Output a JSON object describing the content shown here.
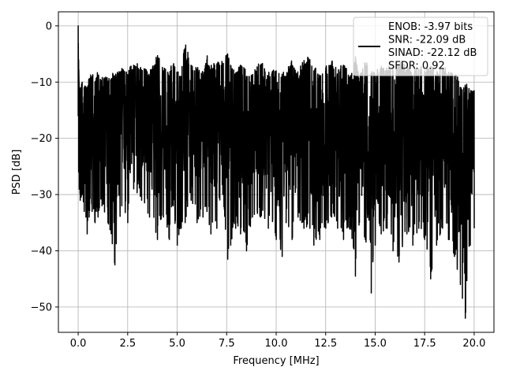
{
  "chart_data": {
    "type": "line",
    "xlabel": "Frequency [MHz]",
    "ylabel": "PSD [dB]",
    "xlim": [
      -1.0,
      21.0
    ],
    "ylim": [
      -54.5,
      2.5
    ],
    "xticks": [
      0.0,
      2.5,
      5.0,
      7.5,
      10.0,
      12.5,
      15.0,
      17.5,
      20.0
    ],
    "xtick_labels": [
      "0.0",
      "2.5",
      "5.0",
      "7.5",
      "10.0",
      "12.5",
      "15.0",
      "17.5",
      "20.0"
    ],
    "yticks": [
      0,
      -10,
      -20,
      -30,
      -40,
      -50
    ],
    "ytick_labels": [
      "0",
      "−10",
      "−20",
      "−30",
      "−40",
      "−50"
    ],
    "grid": true,
    "legend_position": "top-right",
    "series_color": "#000000",
    "legend": {
      "lines": [
        "ENOB: -3.97 bits",
        "SNR: -22.09 dB",
        "SINAD: -22.12 dB",
        "SFDR: 0.92"
      ]
    },
    "series": [
      {
        "x": [
          0.0,
          0.02,
          0.05,
          0.1,
          0.2,
          0.3,
          0.45,
          0.55,
          0.7,
          0.85,
          1.0,
          1.2,
          1.5,
          1.85,
          2.2,
          2.5,
          2.8,
          3.2,
          3.6,
          4.0,
          4.3,
          4.6,
          4.8,
          5.0,
          5.2,
          5.4,
          5.7,
          6.0,
          6.3,
          6.5,
          6.7,
          7.0,
          7.3,
          7.55,
          7.7,
          7.95,
          8.2,
          8.5,
          8.8,
          9.2,
          9.6,
          10.0,
          10.3,
          10.5,
          10.8,
          11.1,
          11.4,
          11.7,
          11.9,
          12.2,
          12.5,
          12.8,
          13.1,
          13.4,
          13.7,
          14.0,
          14.2,
          14.5,
          14.8,
          15.0,
          15.3,
          15.6,
          15.9,
          16.2,
          16.6,
          16.9,
          17.2,
          17.5,
          17.8,
          18.1,
          18.4,
          18.7,
          19.0,
          19.3,
          19.55,
          19.8,
          20.0
        ],
        "peaks": [
          0,
          -6,
          -11,
          -12,
          -10,
          -11,
          -12,
          -10,
          -9,
          -10,
          -9,
          -10,
          -10,
          -9,
          -8,
          -9,
          -7,
          -8,
          -9,
          -6,
          -8,
          -9,
          -7,
          -9,
          -9,
          -4,
          -7,
          -8,
          -9,
          -6,
          -8,
          -7,
          -7,
          -5,
          -7,
          -9,
          -7,
          -9,
          -9,
          -7,
          -9,
          -8,
          -9,
          -9,
          -7,
          -9,
          -7,
          -6,
          -8,
          -9,
          -8,
          -7,
          -9,
          -7,
          -10,
          -6,
          -10,
          -7,
          -9,
          -9,
          -8,
          -8,
          -8,
          -7,
          -8,
          -9,
          -8,
          -8,
          -8,
          -9,
          -8,
          -9,
          -9,
          -11,
          -11,
          -12,
          -12
        ],
        "troughs": [
          -16,
          -26,
          -29,
          -31,
          -30,
          -33,
          -37,
          -34,
          -33,
          -35,
          -34,
          -32,
          -35,
          -42.5,
          -32,
          -35,
          -29,
          -31,
          -34,
          -38,
          -34,
          -38,
          -32,
          -39,
          -36,
          -35,
          -31,
          -35,
          -34,
          -33,
          -37,
          -36,
          -30,
          -41.5,
          -39,
          -36,
          -37,
          -40,
          -34,
          -34,
          -36,
          -38,
          -41,
          -35,
          -38,
          -34,
          -36,
          -36,
          -39,
          -38,
          -36,
          -34,
          -36,
          -38,
          -36,
          -44.5,
          -35,
          -38,
          -47.5,
          -39,
          -37,
          -36,
          -40,
          -42,
          -37,
          -39,
          -36,
          -38,
          -45,
          -39,
          -36,
          -38,
          -41,
          -46,
          -52,
          -39,
          -36
        ]
      }
    ]
  }
}
